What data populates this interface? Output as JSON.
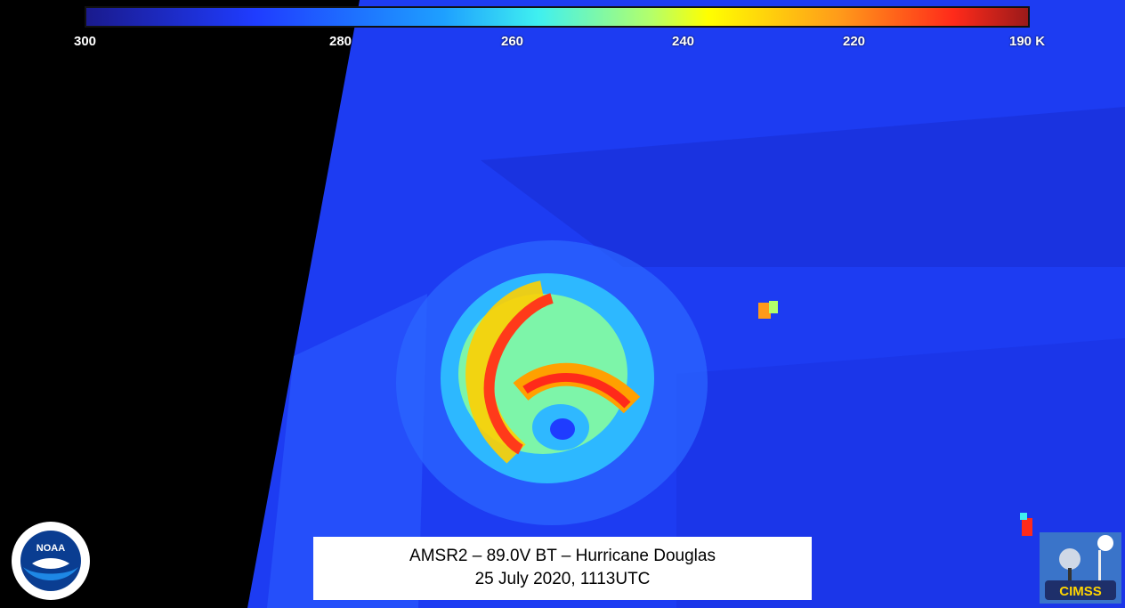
{
  "colorbar": {
    "ticks": [
      "300",
      "280",
      "260",
      "240",
      "220",
      "190 K"
    ],
    "colors": [
      "#1a1a8c",
      "#1f3cff",
      "#1ea0ff",
      "#3ff0f0",
      "#b4ff6a",
      "#ffff00",
      "#ff9a1a",
      "#ff2a1a",
      "#9a1a1a"
    ]
  },
  "caption": {
    "line1": "AMSR2 – 89.0V BT – Hurricane Douglas",
    "line2": "25 July 2020, 1113UTC"
  },
  "logos": {
    "noaa": "NOAA",
    "cimss": "CIMSS"
  },
  "icons": {
    "noaa_logo": "noaa-logo-icon",
    "cimss_logo": "cimss-logo-icon"
  }
}
